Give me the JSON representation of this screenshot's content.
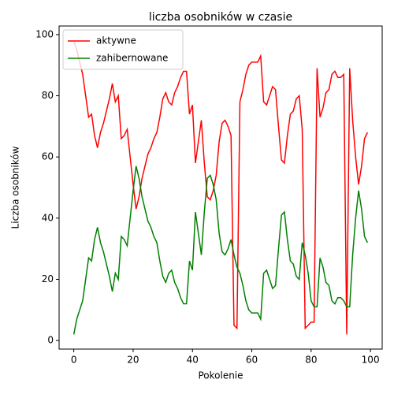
{
  "chart_data": {
    "type": "line",
    "title": "liczba osobników w czasie",
    "xlabel": "Pokolenie",
    "ylabel": "Liczba osobników",
    "x": [
      0,
      1,
      2,
      3,
      4,
      5,
      6,
      7,
      8,
      9,
      10,
      11,
      12,
      13,
      14,
      15,
      16,
      17,
      18,
      19,
      20,
      21,
      22,
      23,
      24,
      25,
      26,
      27,
      28,
      29,
      30,
      31,
      32,
      33,
      34,
      35,
      36,
      37,
      38,
      39,
      40,
      41,
      42,
      43,
      44,
      45,
      46,
      47,
      48,
      49,
      50,
      51,
      52,
      53,
      54,
      55,
      56,
      57,
      58,
      59,
      60,
      61,
      62,
      63,
      64,
      65,
      66,
      67,
      68,
      69,
      70,
      71,
      72,
      73,
      74,
      75,
      76,
      77,
      78,
      79,
      80,
      81,
      82,
      83,
      84,
      85,
      86,
      87,
      88,
      89,
      90,
      91,
      92,
      93,
      94,
      95,
      96,
      97,
      98,
      99
    ],
    "series": [
      {
        "name": "aktywne",
        "color": "#ff0000",
        "values": [
          98,
          95,
          91,
          87,
          80,
          73,
          74,
          67,
          63,
          68,
          71,
          75,
          79,
          84,
          78,
          80,
          66,
          67,
          69,
          60,
          51,
          43,
          47,
          53,
          57,
          61,
          63,
          66,
          68,
          73,
          79,
          81,
          78,
          77,
          81,
          83,
          86,
          88,
          88,
          74,
          77,
          58,
          65,
          72,
          58,
          47,
          46,
          49,
          54,
          65,
          71,
          72,
          70,
          67,
          5,
          4,
          78,
          82,
          87,
          90,
          91,
          91,
          91,
          93,
          78,
          77,
          80,
          83,
          82,
          70,
          59,
          58,
          67,
          74,
          75,
          79,
          80,
          69,
          4,
          5,
          6,
          6,
          89,
          73,
          76,
          81,
          82,
          87,
          88,
          86,
          86,
          87,
          2,
          89,
          72,
          60,
          51,
          57,
          66,
          68
        ]
      },
      {
        "name": "zahibernowane",
        "color": "#008000",
        "values": [
          2,
          7,
          10,
          13,
          20,
          27,
          26,
          33,
          37,
          32,
          29,
          25,
          21,
          16,
          22,
          20,
          34,
          33,
          31,
          40,
          49,
          57,
          53,
          47,
          43,
          39,
          37,
          34,
          32,
          26,
          21,
          19,
          22,
          23,
          19,
          17,
          14,
          12,
          12,
          26,
          23,
          42,
          35,
          28,
          42,
          53,
          54,
          51,
          46,
          35,
          29,
          28,
          30,
          33,
          28,
          24,
          22,
          18,
          13,
          10,
          9,
          9,
          9,
          7,
          22,
          23,
          20,
          17,
          18,
          30,
          41,
          42,
          33,
          26,
          25,
          21,
          20,
          32,
          28,
          22,
          13,
          11,
          11,
          27,
          24,
          19,
          18,
          13,
          12,
          14,
          14,
          13,
          11,
          11,
          28,
          40,
          49,
          43,
          34,
          32
        ]
      }
    ],
    "xlim": [
      -4.95,
      103.95
    ],
    "ylim": [
      -2.8,
      102.8
    ],
    "xticks": [
      0,
      20,
      40,
      60,
      80,
      100
    ],
    "yticks": [
      0,
      20,
      40,
      60,
      80,
      100
    ],
    "legend": "upper left"
  }
}
